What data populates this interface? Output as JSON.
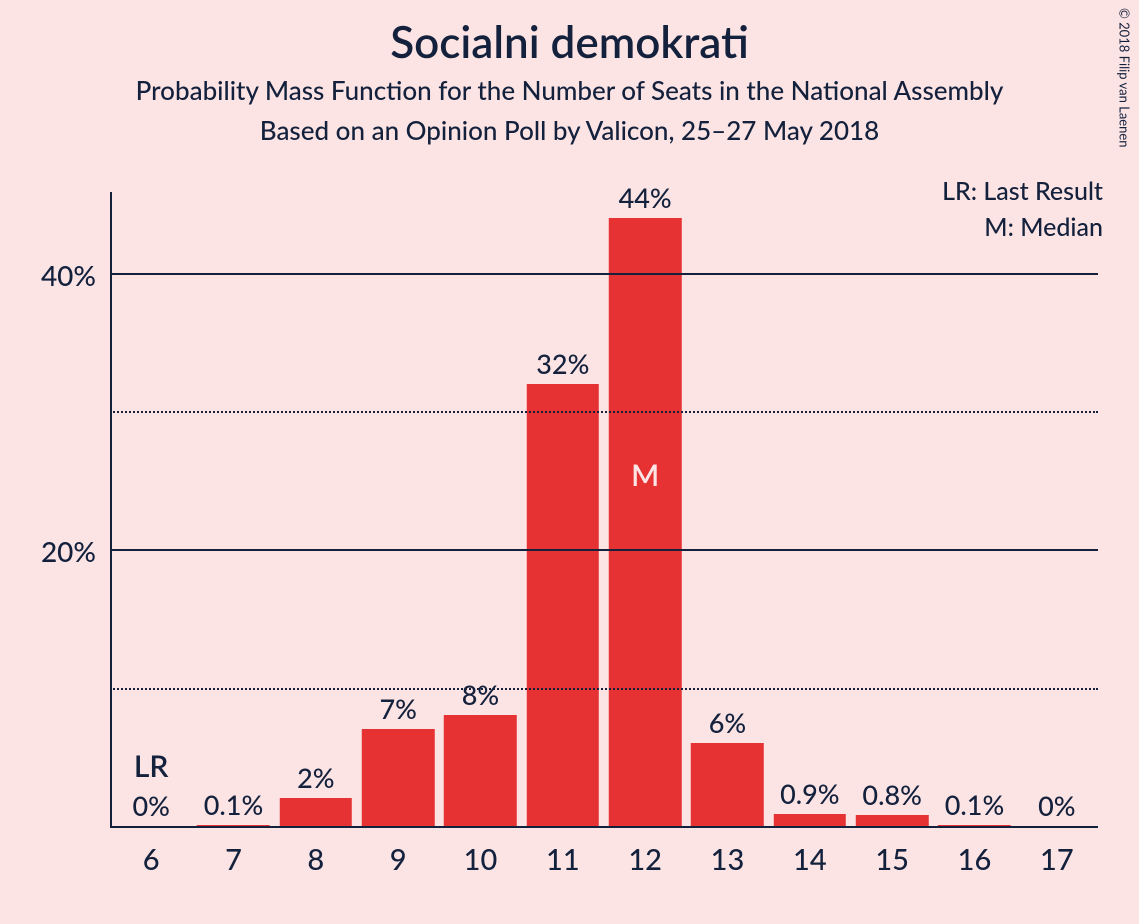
{
  "chart": {
    "type": "bar",
    "title": "Socialni demokrati",
    "subtitle1": "Probability Mass Function for the Number of Seats in the National Assembly",
    "subtitle2": "Based on an Opinion Poll by Valicon, 25–27 May 2018",
    "copyright": "© 2018 Filip van Laenen",
    "background_color": "#fce4e4",
    "text_color": "#14213d",
    "bar_color": "#e63232",
    "legend": {
      "lr": "LR: Last Result",
      "m": "M: Median"
    },
    "y_axis": {
      "max": 46,
      "ticks": [
        {
          "value": 10,
          "label": "",
          "style": "dotted"
        },
        {
          "value": 20,
          "label": "20%",
          "style": "solid"
        },
        {
          "value": 30,
          "label": "",
          "style": "dotted"
        },
        {
          "value": 40,
          "label": "40%",
          "style": "solid"
        }
      ],
      "tick_fontsize": 28
    },
    "x_axis": {
      "tick_fontsize": 29
    },
    "bars": [
      {
        "x": "6",
        "value": 0,
        "label": "0%",
        "annotation": "LR",
        "annotation_color": "#14213d"
      },
      {
        "x": "7",
        "value": 0.1,
        "label": "0.1%"
      },
      {
        "x": "8",
        "value": 2,
        "label": "2%"
      },
      {
        "x": "9",
        "value": 7,
        "label": "7%"
      },
      {
        "x": "10",
        "value": 8,
        "label": "8%"
      },
      {
        "x": "11",
        "value": 32,
        "label": "32%"
      },
      {
        "x": "12",
        "value": 44,
        "label": "44%",
        "annotation": "M",
        "annotation_color": "#ffe6e6",
        "annotation_inside": true
      },
      {
        "x": "13",
        "value": 6,
        "label": "6%"
      },
      {
        "x": "14",
        "value": 0.9,
        "label": "0.9%"
      },
      {
        "x": "15",
        "value": 0.8,
        "label": "0.8%"
      },
      {
        "x": "16",
        "value": 0.1,
        "label": "0.1%"
      },
      {
        "x": "17",
        "value": 0,
        "label": "0%"
      }
    ],
    "bar_width_ratio": 0.88,
    "value_label_fontsize": 27,
    "annotation_fontsize": 30
  }
}
